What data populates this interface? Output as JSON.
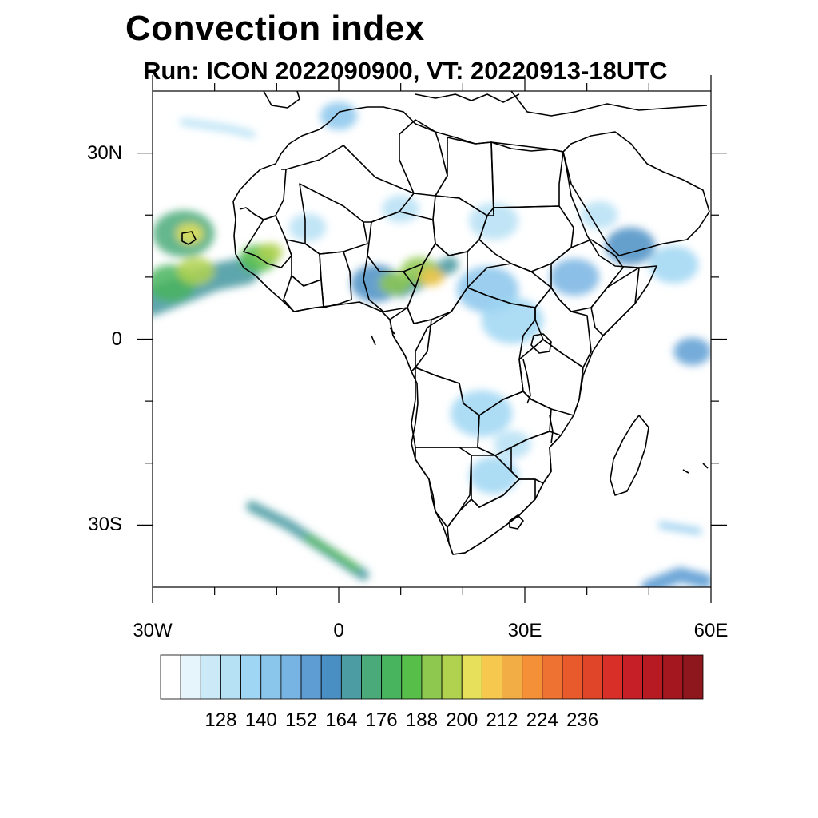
{
  "title": "Convection index",
  "subtitle": "Run: ICON 2022090900,  VT: 20220913-18UTC",
  "map": {
    "lon_range": [
      -30,
      60
    ],
    "lat_range": [
      -40,
      40
    ],
    "x_ticks": [
      {
        "lon": -30,
        "label": "30W"
      },
      {
        "lon": 0,
        "label": "0"
      },
      {
        "lon": 30,
        "label": "30E"
      },
      {
        "lon": 60,
        "label": "60E"
      }
    ],
    "y_ticks": [
      {
        "lat": 30,
        "label": "30N"
      },
      {
        "lat": 0,
        "label": "0"
      },
      {
        "lat": -30,
        "label": "30S"
      }
    ],
    "minor_lon": [
      -20,
      -10,
      10,
      20,
      40,
      50
    ],
    "minor_lat": [
      20,
      10,
      -10,
      -20
    ],
    "boundaries": "national borders and coastlines (black lines)"
  },
  "colorbar": {
    "levels": [
      "128",
      "140",
      "152",
      "164",
      "176",
      "188",
      "200",
      "212",
      "224",
      "236"
    ],
    "colors": [
      "#ffffff",
      "#e6f4fb",
      "#cbe9f7",
      "#b6e1f5",
      "#9fd6f3",
      "#8ac6ec",
      "#78b4e3",
      "#5e9dd4",
      "#4a8fc4",
      "#4c9ca4",
      "#4aaa7a",
      "#49b45e",
      "#58be4a",
      "#8ec84f",
      "#b0d24f",
      "#e6e05a",
      "#f6c84e",
      "#f3ad45",
      "#f39038",
      "#ee7333",
      "#e85a2c",
      "#e04529",
      "#d82f28",
      "#c71f27",
      "#b81a23",
      "#a4171f",
      "#8e161d"
    ]
  },
  "convection_blobs": [
    {
      "lon": -25,
      "lat": 17,
      "r": 5,
      "level": 10
    },
    {
      "lon": -24,
      "lat": 17,
      "r": 2.2,
      "level": 15
    },
    {
      "lon": -27,
      "lat": 9,
      "r": 4,
      "level": 11
    },
    {
      "lon": -23,
      "lat": 11,
      "r": 3,
      "level": 14
    },
    {
      "lon": -13,
      "lat": 13,
      "r": 3,
      "level": 12
    },
    {
      "lon": -11,
      "lat": 14,
      "r": 2,
      "level": 14
    },
    {
      "lon": 6,
      "lat": 9,
      "r": 4,
      "level": 8
    },
    {
      "lon": 9,
      "lat": 9,
      "r": 2.5,
      "level": 13
    },
    {
      "lon": 13,
      "lat": 11,
      "r": 3,
      "level": 13
    },
    {
      "lon": 15,
      "lat": 10,
      "r": 2,
      "level": 16
    },
    {
      "lon": 24,
      "lat": 8,
      "r": 5,
      "level": 5
    },
    {
      "lon": 28,
      "lat": 3,
      "r": 5,
      "level": 4
    },
    {
      "lon": 38,
      "lat": 10,
      "r": 4,
      "level": 6
    },
    {
      "lon": 47,
      "lat": 15,
      "r": 4,
      "level": 8
    },
    {
      "lon": 54,
      "lat": 12,
      "r": 4,
      "level": 4
    },
    {
      "lon": 57,
      "lat": -2,
      "r": 3,
      "level": 7
    },
    {
      "lon": 23,
      "lat": -12,
      "r": 5,
      "level": 4
    },
    {
      "lon": 25,
      "lat": -22,
      "r": 4,
      "level": 4
    },
    {
      "lon": 28,
      "lat": -17,
      "r": 3,
      "level": 3
    },
    {
      "lon": 25,
      "lat": 19,
      "r": 4,
      "level": 3
    },
    {
      "lon": 42,
      "lat": 20,
      "r": 3,
      "level": 3
    },
    {
      "lon": 0,
      "lat": 36,
      "r": 3,
      "level": 5
    },
    {
      "lon": -5,
      "lat": 18,
      "r": 3,
      "level": 3
    },
    {
      "lon": 10,
      "lat": 21,
      "r": 3,
      "level": 3
    }
  ],
  "convection_bands": [
    {
      "pts": [
        [
          -30,
          6
        ],
        [
          -25,
          8
        ],
        [
          -20,
          10
        ],
        [
          -15,
          11
        ]
      ],
      "w": 2.2,
      "level": 9
    },
    {
      "pts": [
        [
          -14,
          -27
        ],
        [
          -8,
          -30
        ],
        [
          -2,
          -34
        ],
        [
          4,
          -38
        ]
      ],
      "w": 0.9,
      "level": 9
    },
    {
      "pts": [
        [
          -5,
          -32
        ],
        [
          0,
          -35
        ],
        [
          3,
          -37
        ]
      ],
      "w": 0.5,
      "level": 12
    },
    {
      "pts": [
        [
          50,
          -40
        ],
        [
          55,
          -38
        ],
        [
          59,
          -39
        ]
      ],
      "w": 1.2,
      "level": 7
    },
    {
      "pts": [
        [
          10,
          8
        ],
        [
          14,
          10
        ],
        [
          18,
          12
        ]
      ],
      "w": 1.3,
      "level": 9
    },
    {
      "pts": [
        [
          -25,
          35
        ],
        [
          -18,
          34
        ],
        [
          -14,
          33
        ]
      ],
      "w": 0.6,
      "level": 3
    },
    {
      "pts": [
        [
          52,
          -30
        ],
        [
          58,
          -31
        ]
      ],
      "w": 0.5,
      "level": 5
    }
  ]
}
